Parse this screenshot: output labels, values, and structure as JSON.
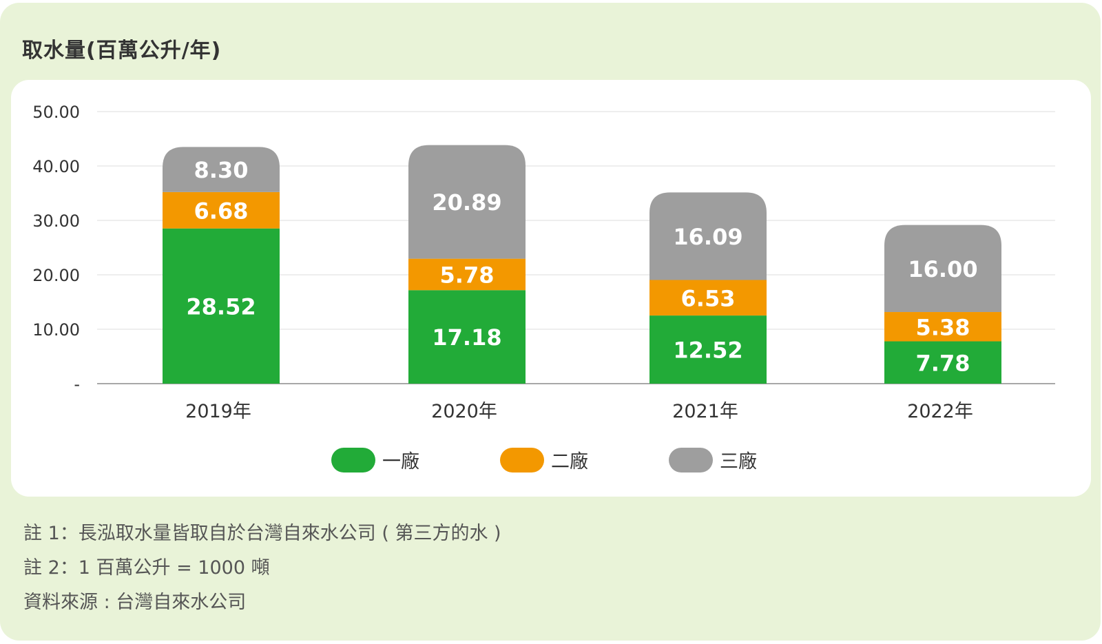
{
  "chart_data": {
    "type": "bar",
    "stacked": true,
    "title": "取水量(百萬公升/年)",
    "categories": [
      "2019年",
      "2020年",
      "2021年",
      "2022年"
    ],
    "series": [
      {
        "name": "一廠",
        "color": "#22ab38",
        "values": [
          28.52,
          17.18,
          12.52,
          7.78
        ],
        "labels": [
          "28.52",
          "17.18",
          "12.52",
          "7.78"
        ]
      },
      {
        "name": "二廠",
        "color": "#f39800",
        "values": [
          6.68,
          5.78,
          6.53,
          5.38
        ],
        "labels": [
          "6.68",
          "5.78",
          "6.53",
          "5.38"
        ]
      },
      {
        "name": "三廠",
        "color": "#9e9e9e",
        "values": [
          8.3,
          20.89,
          16.09,
          16.0
        ],
        "labels": [
          "8.30",
          "20.89",
          "16.09",
          "16.00"
        ]
      }
    ],
    "y_ticks": [
      "-",
      "10.00",
      "20.00",
      "30.00",
      "40.00",
      "50.00"
    ],
    "ylim": [
      0,
      50
    ],
    "grid": true,
    "legend_position": "bottom"
  },
  "notes": [
    "註 1：長泓取水量皆取自於台灣自來水公司 ( 第三方的水 )",
    "註 2：1 百萬公升 = 1000 噸",
    "資料來源 : 台灣自來水公司"
  ],
  "colors": {
    "panel_background": "#e9f3d8",
    "card_background": "#ffffff",
    "gridline": "#dcdcdc",
    "axis_text": "#333333"
  }
}
